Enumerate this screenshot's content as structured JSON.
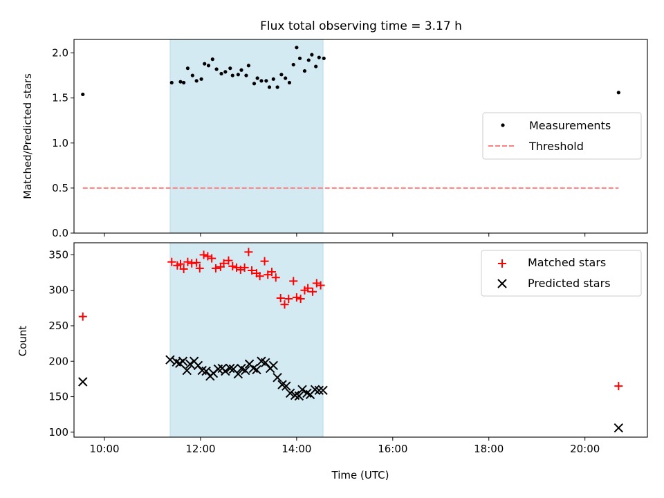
{
  "figure": {
    "title": "Flux total observing time = 3.17 h"
  },
  "chart_data": [
    {
      "type": "scatter",
      "title": "Flux total observing time = 3.17 h",
      "xlabel": "",
      "ylabel": "Matched/Predicted stars",
      "xlim": [
        "09:22",
        "21:18"
      ],
      "ylim": [
        0,
        2.15
      ],
      "x_ticks": [
        "10:00",
        "12:00",
        "14:00",
        "16:00",
        "18:00",
        "20:00"
      ],
      "y_ticks": [
        "0.0",
        "0.5",
        "1.0",
        "1.5",
        "2.0"
      ],
      "shaded_span": [
        "11:22",
        "14:33"
      ],
      "legend_position": "center right",
      "colors": {
        "measurements": "#000000",
        "threshold": "#ff7f7f",
        "span": "#add8e6"
      },
      "series": [
        {
          "name": "Measurements",
          "marker": "dot",
          "points": [
            [
              "09:33",
              1.54
            ],
            [
              "11:24",
              1.67
            ],
            [
              "11:35",
              1.68
            ],
            [
              "11:39",
              1.67
            ],
            [
              "11:44",
              1.83
            ],
            [
              "11:50",
              1.75
            ],
            [
              "11:55",
              1.69
            ],
            [
              "12:01",
              1.71
            ],
            [
              "12:05",
              1.88
            ],
            [
              "12:10",
              1.86
            ],
            [
              "12:15",
              1.93
            ],
            [
              "12:20",
              1.82
            ],
            [
              "12:26",
              1.77
            ],
            [
              "12:31",
              1.79
            ],
            [
              "12:37",
              1.83
            ],
            [
              "12:40",
              1.75
            ],
            [
              "12:47",
              1.76
            ],
            [
              "12:51",
              1.81
            ],
            [
              "12:57",
              1.75
            ],
            [
              "13:00",
              1.86
            ],
            [
              "13:07",
              1.66
            ],
            [
              "13:11",
              1.72
            ],
            [
              "13:16",
              1.69
            ],
            [
              "13:22",
              1.69
            ],
            [
              "13:26",
              1.62
            ],
            [
              "13:31",
              1.71
            ],
            [
              "13:36",
              1.62
            ],
            [
              "13:41",
              1.76
            ],
            [
              "13:46",
              1.72
            ],
            [
              "13:51",
              1.67
            ],
            [
              "13:56",
              1.87
            ],
            [
              "14:00",
              2.06
            ],
            [
              "14:04",
              1.94
            ],
            [
              "14:10",
              1.8
            ],
            [
              "14:15",
              1.92
            ],
            [
              "14:19",
              1.98
            ],
            [
              "14:24",
              1.85
            ],
            [
              "14:28",
              1.95
            ],
            [
              "14:34",
              1.94
            ],
            [
              "20:42",
              1.56
            ]
          ]
        },
        {
          "name": "Threshold",
          "style": "dashed",
          "points": [
            [
              "09:33",
              0.5
            ],
            [
              "20:42",
              0.5
            ]
          ]
        }
      ]
    },
    {
      "type": "scatter",
      "title": "",
      "xlabel": "Time (UTC)",
      "ylabel": "Count",
      "xlim": [
        "09:22",
        "21:18"
      ],
      "ylim": [
        93,
        367
      ],
      "x_ticks": [
        "10:00",
        "12:00",
        "14:00",
        "16:00",
        "18:00",
        "20:00"
      ],
      "y_ticks": [
        "100",
        "150",
        "200",
        "250",
        "300",
        "350"
      ],
      "shaded_span": [
        "11:22",
        "14:33"
      ],
      "legend_position": "upper right",
      "colors": {
        "matched": "#ff0000",
        "predicted": "#000000",
        "span": "#add8e6"
      },
      "series": [
        {
          "name": "Matched stars",
          "marker": "plus",
          "points": [
            [
              "09:33",
              263
            ],
            [
              "11:24",
              340
            ],
            [
              "11:31",
              335
            ],
            [
              "11:35",
              337
            ],
            [
              "11:39",
              330
            ],
            [
              "11:44",
              340
            ],
            [
              "11:49",
              338
            ],
            [
              "11:55",
              339
            ],
            [
              "11:59",
              331
            ],
            [
              "12:04",
              350
            ],
            [
              "12:09",
              348
            ],
            [
              "12:14",
              345
            ],
            [
              "12:19",
              331
            ],
            [
              "12:25",
              333
            ],
            [
              "12:29",
              338
            ],
            [
              "12:35",
              342
            ],
            [
              "12:40",
              334
            ],
            [
              "12:45",
              332
            ],
            [
              "12:50",
              329
            ],
            [
              "12:55",
              332
            ],
            [
              "13:00",
              354
            ],
            [
              "13:04",
              328
            ],
            [
              "13:10",
              324
            ],
            [
              "13:14",
              320
            ],
            [
              "13:20",
              341
            ],
            [
              "13:24",
              322
            ],
            [
              "13:29",
              326
            ],
            [
              "13:34",
              318
            ],
            [
              "13:40",
              289
            ],
            [
              "13:45",
              280
            ],
            [
              "13:50",
              288
            ],
            [
              "13:56",
              313
            ],
            [
              "14:00",
              290
            ],
            [
              "14:05",
              288
            ],
            [
              "14:10",
              300
            ],
            [
              "14:14",
              303
            ],
            [
              "14:20",
              298
            ],
            [
              "14:25",
              310
            ],
            [
              "14:30",
              307
            ],
            [
              "20:42",
              165
            ]
          ]
        },
        {
          "name": "Predicted stars",
          "marker": "x",
          "points": [
            [
              "09:33",
              171
            ],
            [
              "11:22",
              202
            ],
            [
              "11:30",
              199
            ],
            [
              "11:34",
              197
            ],
            [
              "11:38",
              200
            ],
            [
              "11:43",
              187
            ],
            [
              "11:47",
              196
            ],
            [
              "11:52",
              200
            ],
            [
              "11:57",
              194
            ],
            [
              "12:02",
              187
            ],
            [
              "12:07",
              186
            ],
            [
              "12:12",
              179
            ],
            [
              "12:16",
              183
            ],
            [
              "12:22",
              189
            ],
            [
              "12:27",
              190
            ],
            [
              "12:31",
              186
            ],
            [
              "12:37",
              190
            ],
            [
              "12:41",
              189
            ],
            [
              "12:47",
              182
            ],
            [
              "12:51",
              190
            ],
            [
              "12:56",
              187
            ],
            [
              "13:01",
              196
            ],
            [
              "13:06",
              190
            ],
            [
              "13:10",
              188
            ],
            [
              "13:16",
              200
            ],
            [
              "13:21",
              198
            ],
            [
              "13:27",
              190
            ],
            [
              "13:31",
              194
            ],
            [
              "13:36",
              177
            ],
            [
              "13:42",
              167
            ],
            [
              "13:47",
              165
            ],
            [
              "13:52",
              155
            ],
            [
              "13:58",
              152
            ],
            [
              "14:03",
              151
            ],
            [
              "14:07",
              160
            ],
            [
              "14:13",
              155
            ],
            [
              "14:17",
              153
            ],
            [
              "14:23",
              160
            ],
            [
              "14:28",
              159
            ],
            [
              "14:33",
              159
            ],
            [
              "20:42",
              106
            ]
          ]
        }
      ]
    }
  ]
}
